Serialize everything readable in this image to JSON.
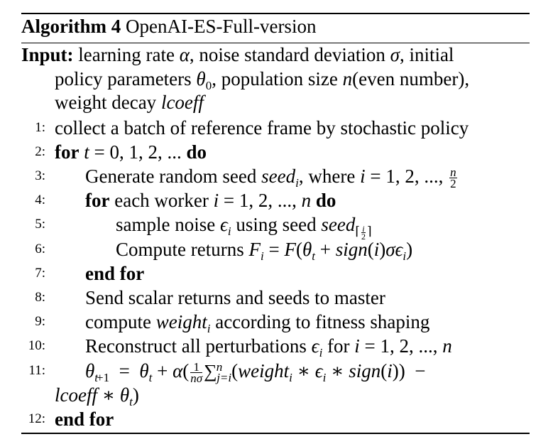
{
  "algorithm": {
    "label": "Algorithm 4",
    "name": "OpenAI-ES-Full-version"
  },
  "input": {
    "label": "Input:",
    "line1": "learning rate α, noise standard deviation σ, initial",
    "line2": "policy parameters θ0, population size n(even number),",
    "line3": "weight decay lcoeff"
  },
  "steps": [
    {
      "n": "1:",
      "text": "collect a batch of reference frame by stochastic policy"
    },
    {
      "n": "2:",
      "text": "for t = 0, 1, 2, ... do"
    },
    {
      "n": "3:",
      "text": "Generate random seed seedi, where i = 1, 2, ..., n/2"
    },
    {
      "n": "4:",
      "text": "for each worker i = 1, 2, ..., n do"
    },
    {
      "n": "5:",
      "text": "sample noise εi using seed seed⌈i/2⌉"
    },
    {
      "n": "6:",
      "text": "Compute returns Fi = F(θt + sign(i)σεi)"
    },
    {
      "n": "7:",
      "text": "end for"
    },
    {
      "n": "8:",
      "text": "Send scalar returns and seeds to master"
    },
    {
      "n": "9:",
      "text": "compute weighti according to fitness shaping"
    },
    {
      "n": "10:",
      "text": "Reconstruct all perturbations εi for i = 1, 2, ..., n"
    },
    {
      "n": "11:",
      "text": "θt+1 = θt + α(1/(nσ) Σ_{j=i}^{n}(weighti ∗ εi ∗ sign(i)) − lcoeff ∗ θt)"
    },
    {
      "n": "12:",
      "text": "end for"
    }
  ]
}
